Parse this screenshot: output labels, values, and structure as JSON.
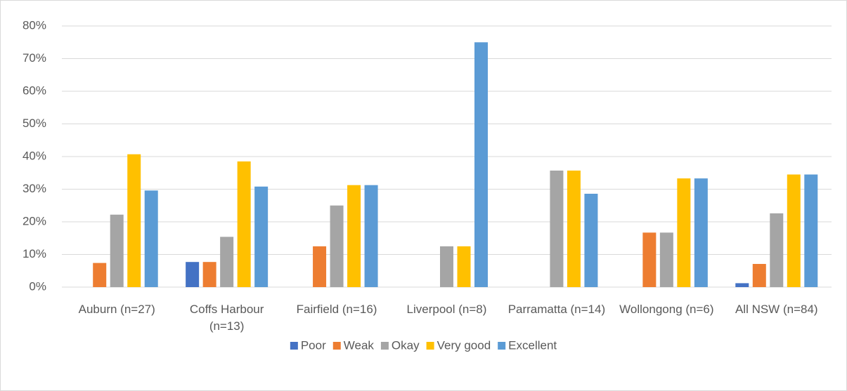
{
  "chart_data": {
    "type": "bar",
    "categories": [
      "Auburn (n=27)",
      "Coffs Harbour (n=13)",
      "Fairfield (n=16)",
      "Liverpool (n=8)",
      "Parramatta (n=14)",
      "Wollongong (n=6)",
      "All NSW (n=84)"
    ],
    "series": [
      {
        "name": "Poor",
        "color": "#4472c4",
        "values": [
          0,
          7.7,
          0,
          0,
          0,
          0,
          1.2
        ]
      },
      {
        "name": "Weak",
        "color": "#ed7d31",
        "values": [
          7.4,
          7.7,
          12.5,
          0,
          0,
          16.7,
          7.1
        ]
      },
      {
        "name": "Okay",
        "color": "#a5a5a5",
        "values": [
          22.2,
          15.4,
          25,
          12.5,
          35.7,
          16.7,
          22.6
        ]
      },
      {
        "name": "Very good",
        "color": "#ffc000",
        "values": [
          40.7,
          38.5,
          31.25,
          12.5,
          35.7,
          33.3,
          34.5
        ]
      },
      {
        "name": "Excellent",
        "color": "#5b9bd5",
        "values": [
          29.6,
          30.8,
          31.25,
          75,
          28.6,
          33.3,
          34.5
        ]
      }
    ],
    "ylim": [
      0,
      80
    ],
    "yticks": [
      {
        "value": 0,
        "label": "0%"
      },
      {
        "value": 10,
        "label": "10%"
      },
      {
        "value": 20,
        "label": "20%"
      },
      {
        "value": 30,
        "label": "30%"
      },
      {
        "value": 40,
        "label": "40%"
      },
      {
        "value": 50,
        "label": "50%"
      },
      {
        "value": 60,
        "label": "60%"
      },
      {
        "value": 70,
        "label": "70%"
      },
      {
        "value": 80,
        "label": "80%"
      }
    ],
    "grid": true,
    "legend": "bottom"
  }
}
